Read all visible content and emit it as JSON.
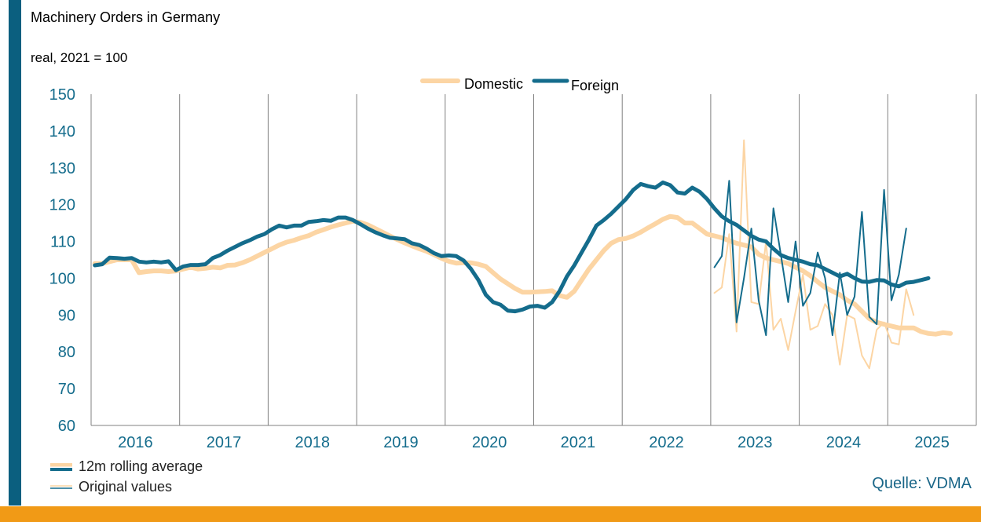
{
  "title": "Machinery Orders in Germany",
  "subtitle": "real, 2021 = 100",
  "source": "Quelle: VDMA",
  "legend_bottom": {
    "avg": "12m rolling average",
    "orig": "Original values"
  },
  "colors": {
    "domestic": "#fcd5a4",
    "foreign": "#146c8c",
    "grid": "#808080",
    "axis_text": "#146c8c",
    "frame": "#0b5f7f",
    "bottom_bar": "#f19a16"
  },
  "chart_data": {
    "type": "line",
    "title": "Machinery Orders in Germany",
    "ylabel": "real, 2021 = 100",
    "ylim": [
      60,
      150
    ],
    "yticks": [
      150,
      140,
      130,
      120,
      110,
      100,
      90,
      80,
      70,
      60
    ],
    "x_start": "2016-01",
    "x_end": "2025-12",
    "year_labels": [
      "2016",
      "2017",
      "2018",
      "2019",
      "2020",
      "2021",
      "2022",
      "2023",
      "2024",
      "2025"
    ],
    "legend": [
      "Domestic",
      "Foreign"
    ],
    "series": [
      {
        "name": "Domestic",
        "kind": "rolling_average",
        "start": "2016-01",
        "values": [
          104,
          104,
          104.5,
          105,
          105,
          105,
          101.5,
          101.8,
          102,
          102,
          101.8,
          102,
          102.5,
          103,
          102.5,
          102.7,
          103,
          102.8,
          103.5,
          103.6,
          104.2,
          105,
          106,
          107,
          108,
          109,
          109.8,
          110.3,
          111,
          111.6,
          112.5,
          113.2,
          113.9,
          114.5,
          115,
          115.5,
          115.2,
          114.5,
          113.5,
          112.5,
          111.5,
          110.5,
          109.6,
          108.8,
          108,
          107.3,
          106.4,
          105.4,
          104.6,
          104.1,
          104.2,
          104.2,
          103.8,
          103.2,
          101.5,
          99.8,
          98.5,
          97.2,
          96.2,
          96.2,
          96.3,
          96.4,
          96.6,
          95.3,
          94.8,
          96.5,
          99.5,
          102.5,
          105,
          107.5,
          109.5,
          110.5,
          110.8,
          111.5,
          112.5,
          113.7,
          114.8,
          116,
          116.8,
          116.5,
          115,
          115,
          113.5,
          112,
          111.5,
          111,
          110.2,
          109.5,
          109,
          108.5,
          106.5,
          105.5,
          105,
          104.5,
          104,
          103,
          102,
          100.7,
          99,
          97.5,
          96.5,
          95.5,
          94,
          93,
          91,
          89,
          88,
          87.5,
          87,
          86.5,
          86.5,
          86.5,
          85.5,
          85,
          84.8,
          85.2,
          85
        ]
      },
      {
        "name": "Foreign",
        "kind": "rolling_average",
        "start": "2016-01",
        "values": [
          103.5,
          103.8,
          105.6,
          105.5,
          105.3,
          105.5,
          104.5,
          104.3,
          104.5,
          104.3,
          104.6,
          102.2,
          103.2,
          103.6,
          103.6,
          103.8,
          105.5,
          106.3,
          107.5,
          108.5,
          109.5,
          110.3,
          111.3,
          112,
          113.3,
          114.3,
          113.8,
          114.3,
          114.3,
          115.3,
          115.5,
          115.8,
          115.6,
          116.5,
          116.5,
          115.8,
          114.7,
          113.5,
          112.5,
          111.7,
          111,
          110.8,
          110.6,
          109.5,
          109,
          108,
          106.8,
          106,
          106.2,
          106,
          104.8,
          102.5,
          99.5,
          95.5,
          93.5,
          92.8,
          91.2,
          91,
          91.5,
          92.3,
          92.5,
          92,
          93.5,
          96.5,
          100.5,
          103.5,
          107,
          110.5,
          114.3,
          115.8,
          117.5,
          119.5,
          121.5,
          124,
          125.6,
          125,
          124.6,
          126,
          125.3,
          123.3,
          123,
          124.6,
          123.5,
          121.5,
          119,
          116.8,
          115.5,
          114.5,
          113,
          111.5,
          110.5,
          110,
          108,
          106.3,
          105.5,
          105,
          104.5,
          103.8,
          103.5,
          102.5,
          101.5,
          100.5,
          101.2,
          100,
          99.1,
          99,
          99.5,
          99.4,
          98.3,
          97.8,
          98.8,
          99,
          99.5,
          100
        ]
      },
      {
        "name": "Domestic",
        "kind": "original",
        "start": "2023-01",
        "values": [
          96,
          97.5,
          112,
          85.5,
          137.5,
          93.5,
          93,
          110,
          86,
          89,
          80.5,
          91,
          101,
          86,
          87,
          93,
          90,
          76.5,
          90,
          89,
          79,
          75.5,
          86,
          88,
          82.5,
          82,
          97,
          90
        ]
      },
      {
        "name": "Foreign",
        "kind": "original",
        "start": "2023-01",
        "values": [
          103,
          106,
          126.5,
          88,
          100,
          113.5,
          94,
          84.5,
          119,
          106.5,
          93.5,
          110,
          92.5,
          96,
          107,
          100,
          84.5,
          101.5,
          90,
          95,
          118,
          89.5,
          87.5,
          124,
          94,
          101,
          113.5
        ]
      }
    ]
  }
}
